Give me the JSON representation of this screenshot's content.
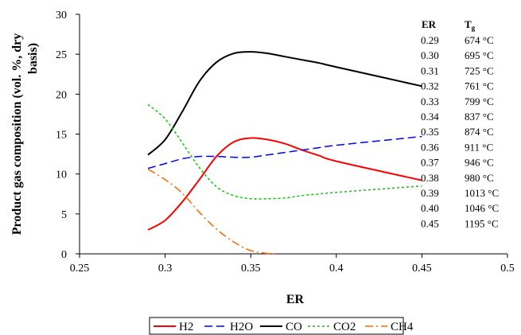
{
  "chart_data": {
    "type": "line",
    "xlabel": "ER",
    "ylabel": "Product gas composition (vol. %, dry basis)",
    "xlim": [
      0.25,
      0.5
    ],
    "ylim": [
      0,
      30
    ],
    "x_ticks": [
      "0.25",
      "0.3",
      "0.35",
      "0.4",
      "0.45",
      "0.5"
    ],
    "y_ticks": [
      "0",
      "5",
      "10",
      "15",
      "20",
      "25",
      "30"
    ],
    "grid": false,
    "legend_position": "bottom",
    "series": [
      {
        "name": "H2",
        "color": "#ff0000",
        "dash": "solid",
        "x": [
          0.29,
          0.3,
          0.31,
          0.32,
          0.33,
          0.34,
          0.35,
          0.36,
          0.37,
          0.38,
          0.39,
          0.4,
          0.45
        ],
        "y": [
          3.0,
          4.2,
          6.5,
          9.3,
          12.2,
          14.0,
          14.5,
          14.3,
          13.8,
          13.0,
          12.3,
          11.6,
          9.2
        ]
      },
      {
        "name": "H2O",
        "color": "#0000ff",
        "dash": "dashed",
        "x": [
          0.29,
          0.3,
          0.31,
          0.32,
          0.33,
          0.34,
          0.35,
          0.36,
          0.37,
          0.38,
          0.39,
          0.4,
          0.45
        ],
        "y": [
          10.7,
          11.3,
          11.9,
          12.2,
          12.2,
          12.1,
          12.1,
          12.4,
          12.7,
          13.0,
          13.3,
          13.6,
          14.7
        ]
      },
      {
        "name": "CO",
        "color": "#000000",
        "dash": "solid",
        "x": [
          0.29,
          0.3,
          0.31,
          0.32,
          0.33,
          0.34,
          0.35,
          0.36,
          0.37,
          0.38,
          0.39,
          0.4,
          0.45
        ],
        "y": [
          12.4,
          14.3,
          17.8,
          21.6,
          24.0,
          25.1,
          25.3,
          25.1,
          24.7,
          24.3,
          23.9,
          23.4,
          21.0
        ]
      },
      {
        "name": "CO2",
        "color": "#00cc00",
        "dash": "dotted",
        "x": [
          0.29,
          0.3,
          0.31,
          0.32,
          0.33,
          0.34,
          0.35,
          0.36,
          0.37,
          0.38,
          0.39,
          0.4,
          0.45
        ],
        "y": [
          18.7,
          16.9,
          13.9,
          10.8,
          8.4,
          7.3,
          6.9,
          6.9,
          7.0,
          7.3,
          7.5,
          7.7,
          8.5
        ]
      },
      {
        "name": "CH4",
        "color": "#ff6600",
        "dash": "dashdot",
        "x": [
          0.29,
          0.3,
          0.31,
          0.32,
          0.33,
          0.34,
          0.35,
          0.36,
          0.365
        ],
        "y": [
          10.6,
          9.3,
          7.6,
          5.2,
          3.1,
          1.5,
          0.4,
          0.05,
          0.0
        ]
      }
    ],
    "table": {
      "header_er": "ER",
      "header_tg": "T",
      "header_tg_sub": "g",
      "rows": [
        {
          "er": "0.29",
          "tg": "674 °C"
        },
        {
          "er": "0.30",
          "tg": "695 °C"
        },
        {
          "er": "0.31",
          "tg": "725 °C"
        },
        {
          "er": "0.32",
          "tg": "761 °C"
        },
        {
          "er": "0.33",
          "tg": "799 °C"
        },
        {
          "er": "0.34",
          "tg": "837 °C"
        },
        {
          "er": "0.35",
          "tg": "874 °C"
        },
        {
          "er": "0.36",
          "tg": "911 °C"
        },
        {
          "er": "0.37",
          "tg": "946 °C"
        },
        {
          "er": "0.38",
          "tg": "980 °C"
        },
        {
          "er": "0.39",
          "tg": "1013 °C"
        },
        {
          "er": "0.40",
          "tg": "1046 °C"
        },
        {
          "er": "0.45",
          "tg": "1195 °C"
        }
      ]
    }
  }
}
